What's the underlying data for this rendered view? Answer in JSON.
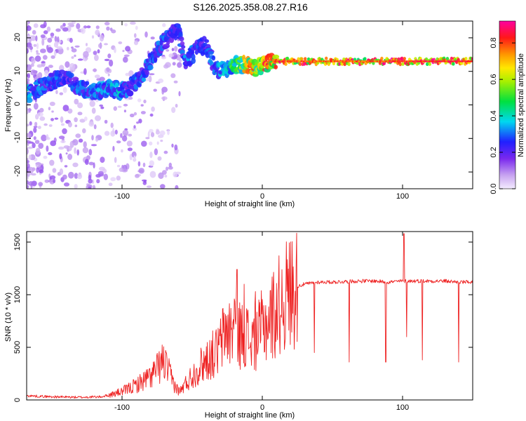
{
  "title": "S126.2025.358.08.27.R16",
  "colors": {
    "snr_line": "#ee2222",
    "axis": "#000000",
    "background": "#ffffff"
  },
  "chart_data": [
    {
      "type": "heatmap",
      "name": "spectrogram",
      "xlabel": "Height of straight line (km)",
      "ylabel": "Frequency (Hz)",
      "xlim": [
        -168,
        150
      ],
      "ylim": [
        -25,
        25
      ],
      "xticks": [
        "-100",
        "0",
        "100"
      ],
      "xtick_values": [
        -100,
        0,
        100
      ],
      "yticks": [
        "20",
        "10",
        "0",
        "-10",
        "-20"
      ],
      "ytick_values": [
        20,
        10,
        0,
        -10,
        -20
      ],
      "colorbar": {
        "label": "Normalized spectral amplitude",
        "range": [
          0,
          0.92
        ],
        "ticks": [
          "0.0",
          "0.2",
          "0.4",
          "0.6",
          "0.8"
        ],
        "tick_values": [
          0.0,
          0.2,
          0.4,
          0.6,
          0.8
        ],
        "colormap": "rainbow (lavender - purple - blue - cyan - green - yellow - orange - red - magenta)"
      },
      "ridge_track": {
        "x": [
          -168,
          -160,
          -150,
          -140,
          -130,
          -120,
          -110,
          -100,
          -95,
          -90,
          -85,
          -80,
          -75,
          -70,
          -65,
          -60,
          -55,
          -50,
          -45,
          -40,
          -35,
          -30,
          -25,
          -20,
          -15,
          -10,
          -5,
          0,
          10,
          20,
          40,
          60,
          80,
          100,
          120,
          150
        ],
        "freq": [
          3,
          5,
          7,
          8,
          5,
          4,
          5,
          4,
          5,
          7,
          9,
          13,
          16,
          19,
          21,
          23,
          13,
          15,
          17,
          18,
          12,
          10,
          11,
          12,
          12,
          12,
          11,
          12,
          13,
          13,
          13,
          13,
          13,
          13,
          13,
          13
        ],
        "amplitude": [
          0.35,
          0.3,
          0.3,
          0.25,
          0.3,
          0.3,
          0.35,
          0.35,
          0.3,
          0.3,
          0.3,
          0.3,
          0.3,
          0.3,
          0.25,
          0.25,
          0.3,
          0.3,
          0.3,
          0.3,
          0.3,
          0.35,
          0.4,
          0.5,
          0.6,
          0.75,
          0.7,
          0.75,
          0.85,
          0.8,
          0.8,
          0.8,
          0.8,
          0.85,
          0.85,
          0.85
        ]
      }
    },
    {
      "type": "line",
      "name": "snr",
      "xlabel": "Height of straight line (km)",
      "ylabel": "SNR (10 * v/v)",
      "xlim": [
        -168,
        150
      ],
      "ylim": [
        0,
        1600
      ],
      "xticks": [
        "-100",
        "0",
        "100"
      ],
      "xtick_values": [
        -100,
        0,
        100
      ],
      "yticks": [
        "1500",
        "1000",
        "500",
        "0"
      ],
      "ytick_values": [
        1500,
        1000,
        500,
        0
      ],
      "series": [
        {
          "name": "SNR",
          "x": [
            -168,
            -150,
            -130,
            -115,
            -108,
            -100,
            -95,
            -90,
            -85,
            -80,
            -75,
            -72,
            -70,
            -68,
            -65,
            -62,
            -60,
            -58,
            -55,
            -50,
            -45,
            -40,
            -37,
            -35,
            -32,
            -30,
            -28,
            -25,
            -22,
            -20,
            -18,
            -15,
            -12,
            -10,
            -8,
            -5,
            -2,
            0,
            5,
            10,
            15,
            20,
            25,
            30,
            35,
            40,
            50,
            60,
            70,
            80,
            90,
            100,
            110,
            120,
            130,
            140,
            150
          ],
          "values": [
            40,
            30,
            25,
            30,
            50,
            80,
            110,
            140,
            180,
            220,
            290,
            350,
            360,
            300,
            210,
            130,
            90,
            90,
            150,
            230,
            310,
            380,
            420,
            430,
            460,
            520,
            600,
            680,
            620,
            800,
            720,
            600,
            650,
            580,
            550,
            600,
            620,
            700,
            760,
            860,
            960,
            1040,
            1080,
            1100,
            1110,
            1120,
            1120,
            1125,
            1130,
            1130,
            1120,
            1130,
            1130,
            1130,
            1130,
            1120,
            1120
          ]
        }
      ],
      "spikes": [
        {
          "x": -18,
          "peak": 1240
        },
        {
          "x": -13,
          "peak": 1100
        },
        {
          "x": -5,
          "peak": 1030
        },
        {
          "x": 37,
          "peak": 450
        },
        {
          "x": 62,
          "peak": 360
        },
        {
          "x": 88,
          "peak": 360
        },
        {
          "x": 101,
          "peak": 1580
        },
        {
          "x": 103,
          "peak": 600
        },
        {
          "x": 114,
          "peak": 380
        },
        {
          "x": 140,
          "peak": 360
        }
      ]
    }
  ]
}
